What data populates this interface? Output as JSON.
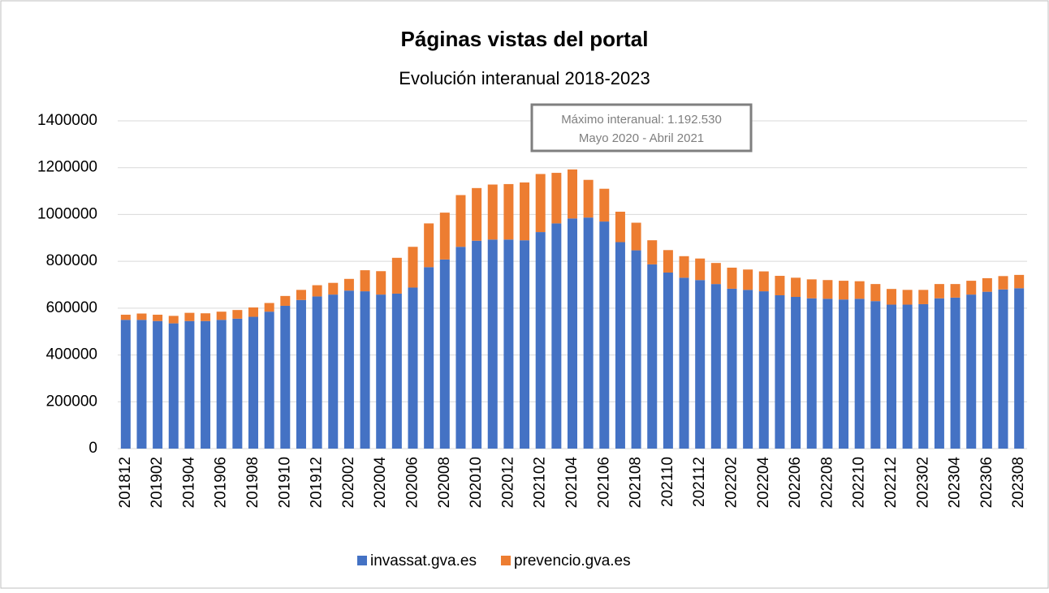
{
  "chart_data": {
    "type": "stacked_bar",
    "title": "Páginas vistas del portal",
    "subtitle": "Evolución interanual 2018-2023",
    "annotation": [
      "Máximo interanual: 1.192.530",
      "Mayo 2020 - Abril 2021"
    ],
    "categories": [
      "201812",
      null,
      "201902",
      null,
      "201904",
      null,
      "201906",
      null,
      "201908",
      null,
      "201910",
      null,
      "201912",
      null,
      "202002",
      null,
      "202004",
      null,
      "202006",
      null,
      "202008",
      null,
      "202010",
      null,
      "202012",
      null,
      "202102",
      null,
      "202104",
      null,
      "202106",
      null,
      "202108",
      null,
      "202110",
      null,
      "202112",
      null,
      "202202",
      null,
      "202204",
      null,
      "202206",
      null,
      "202208",
      null,
      "202210",
      null,
      "202212",
      null,
      "202302",
      null,
      "202304",
      null,
      "202306",
      null,
      "202308"
    ],
    "series": [
      {
        "name": "invassat.gva.es",
        "color": "#4472c4",
        "values": [
          550000,
          550000,
          545000,
          535000,
          545000,
          545000,
          550000,
          555000,
          563000,
          585000,
          610000,
          635000,
          650000,
          658000,
          675000,
          672000,
          658000,
          662000,
          688000,
          775000,
          808000,
          862000,
          888000,
          893000,
          893000,
          890000,
          925000,
          962000,
          983000,
          987000,
          970000,
          882000,
          847000,
          787000,
          752000,
          730000,
          720000,
          703000,
          683000,
          678000,
          672000,
          655000,
          648000,
          642000,
          640000,
          637000,
          640000,
          630000,
          615000,
          615000,
          617000,
          642000,
          645000,
          658000,
          670000,
          680000,
          685000
        ]
      },
      {
        "name": "prevencio.gva.es",
        "color": "#ed7d31",
        "values": [
          22000,
          27000,
          27000,
          32000,
          35000,
          33000,
          35000,
          37000,
          40000,
          37000,
          42000,
          43000,
          48000,
          50000,
          50000,
          90000,
          100000,
          153000,
          174000,
          187000,
          200000,
          221000,
          225000,
          235000,
          237000,
          247000,
          248000,
          216000,
          209530,
          161000,
          140000,
          130000,
          118000,
          103000,
          96000,
          92000,
          92000,
          90000,
          90000,
          87000,
          85000,
          83000,
          82000,
          81000,
          80000,
          80000,
          75000,
          73000,
          67000,
          63000,
          61000,
          61000,
          58000,
          59000,
          58000,
          57000,
          57000
        ]
      }
    ],
    "ylim": [
      0,
      1400000
    ],
    "yticks": [
      0,
      200000,
      400000,
      600000,
      800000,
      1000000,
      1200000,
      1400000
    ],
    "grid": true,
    "legend": "bottom"
  }
}
